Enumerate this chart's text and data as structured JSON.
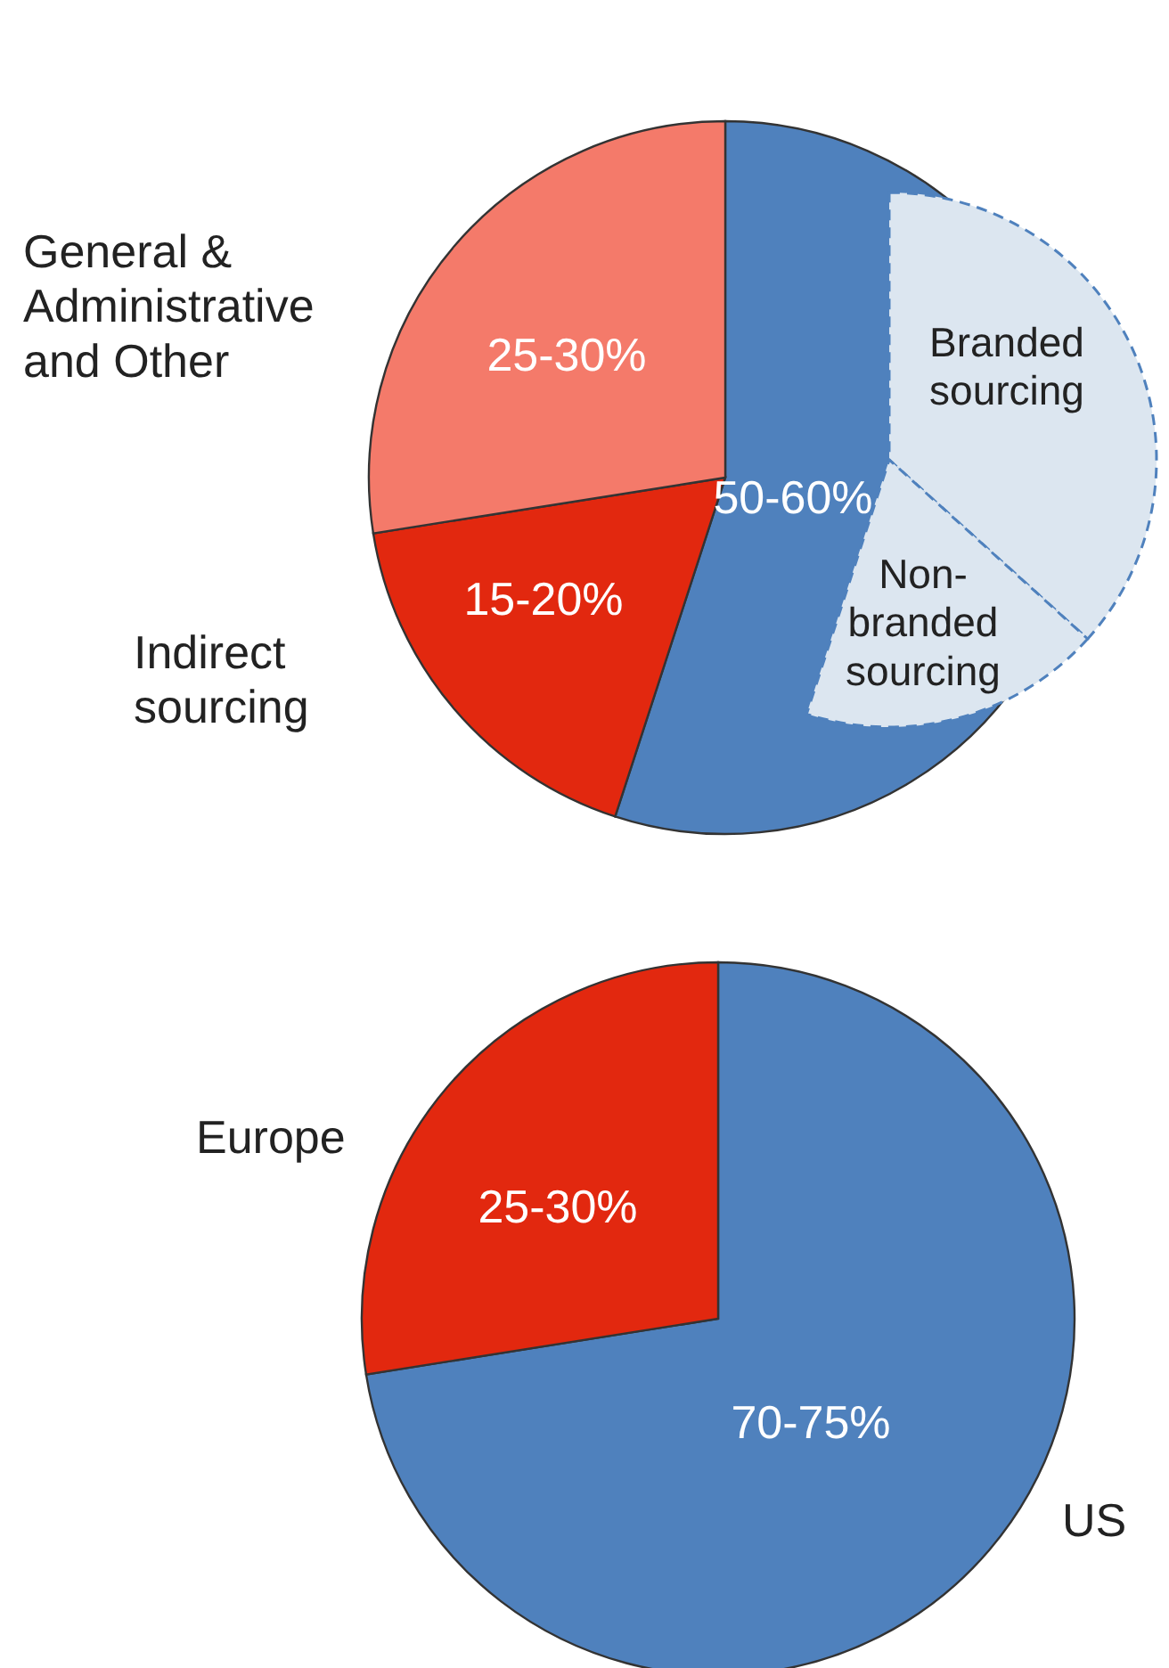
{
  "chart_data": [
    {
      "type": "pie",
      "categories": [
        null,
        "Indirect sourcing",
        "General & Administrative and Other"
      ],
      "values": [
        55,
        17.5,
        27.5
      ],
      "colors": [
        "#4f81bd",
        "#e2280f",
        "#f47a6a"
      ],
      "annotations": [
        "50-60%",
        "15-20%",
        "25-30%"
      ]
    },
    {
      "type": "pie",
      "categories": [
        "Branded sourcing",
        "Non-branded sourcing"
      ],
      "values": [
        66.7,
        33.3
      ],
      "colors": [
        "#dce6f0",
        "#dce6f0"
      ],
      "line_style": "dashed"
    },
    {
      "type": "pie",
      "categories": [
        "US",
        "Europe"
      ],
      "values": [
        72.5,
        27.5
      ],
      "colors": [
        "#4f81bd",
        "#e2280f"
      ],
      "annotations": [
        "70-75%",
        "25-30%"
      ]
    }
  ]
}
